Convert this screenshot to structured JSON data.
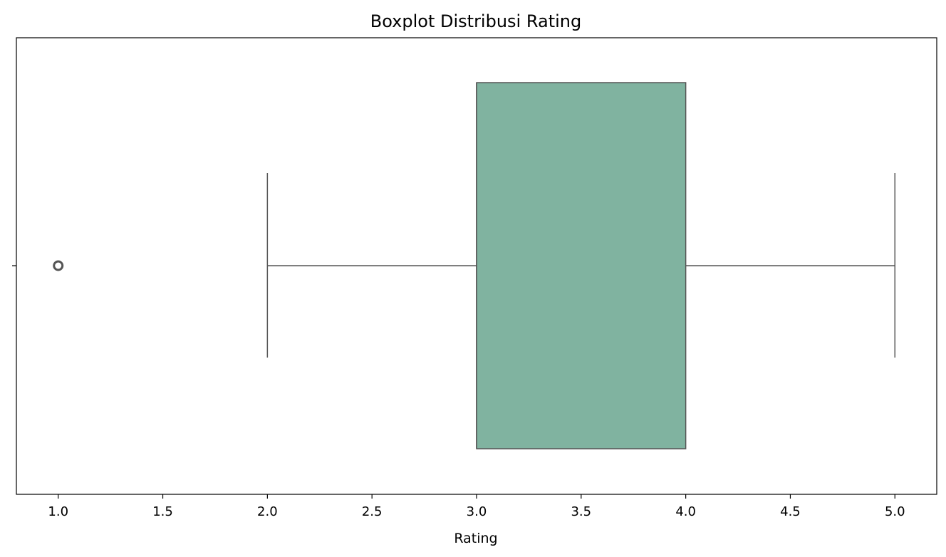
{
  "chart_data": {
    "type": "boxplot",
    "title": "Boxplot Distribusi Rating",
    "xlabel": "Rating",
    "ylabel": "",
    "xlim": [
      0.8,
      5.2
    ],
    "xticks": [
      1.0,
      1.5,
      2.0,
      2.5,
      3.0,
      3.5,
      4.0,
      4.5,
      5.0
    ],
    "xtick_labels": [
      "1.0",
      "1.5",
      "2.0",
      "2.5",
      "3.0",
      "3.5",
      "4.0",
      "4.5",
      "5.0"
    ],
    "orientation": "horizontal",
    "grid": false,
    "box": {
      "whisker_low": 2.0,
      "q1": 3.0,
      "median": 3.0,
      "q3": 4.0,
      "whisker_high": 5.0,
      "outliers": [
        1.0
      ]
    },
    "colors": {
      "box_fill": "#80b3a0",
      "line": "#555555",
      "outlier": "#555555"
    }
  }
}
